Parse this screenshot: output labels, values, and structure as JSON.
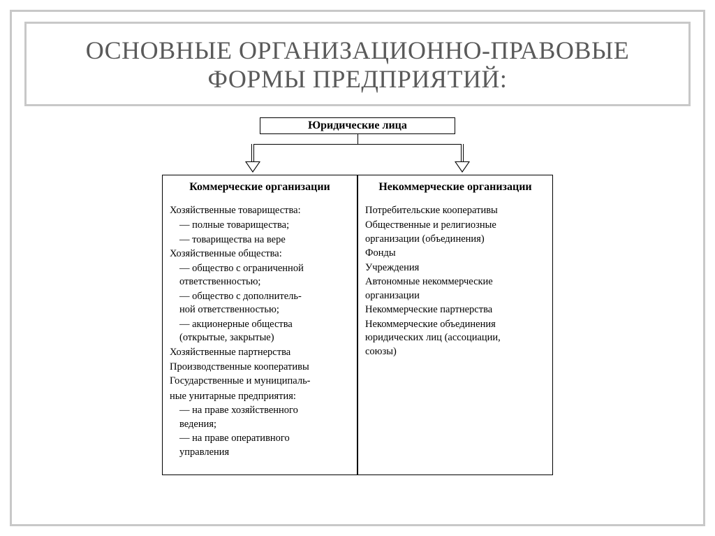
{
  "title": "ОСНОВНЫЕ ОРГАНИЗАЦИОННО-ПРАВОВЫЕ ФОРМЫ ПРЕДПРИЯТИЙ:",
  "root_label": "Юридические лица",
  "columns": {
    "commercial": {
      "heading": "Коммерческие организации",
      "g1_label": "Хозяйственные товарищества:",
      "g1_items": [
        "полные товарищества;",
        "товарищества на вере"
      ],
      "g2_label": "Хозяйственные общества:",
      "g2_items_a": "общество с ограниченной",
      "g2_items_a2": "ответственностью;",
      "g2_items_b": "общество с дополнитель-",
      "g2_items_b2": "ной ответственностью;",
      "g2_items_c": "акционерные общества",
      "g2_items_c2": "(открытые, закрытые)",
      "g3": "Хозяйственные партнерства",
      "g4": "Производственные кооперативы",
      "g5a": "Государственные и муниципаль-",
      "g5b": "ные унитарные предприятия:",
      "g5_items_a": "на праве хозяйственного",
      "g5_items_a2": "ведения;",
      "g5_items_b": "на праве оперативного",
      "g5_items_b2": "управления"
    },
    "noncommercial": {
      "heading": "Некоммерческие организации",
      "l1": "Потребительские кооперативы",
      "l2a": "Общественные и религиозные",
      "l2b": "организации (объединения)",
      "l3": "Фонды",
      "l4": "Учреждения",
      "l5a": "Автономные некоммерческие",
      "l5b": "организации",
      "l6": "Некоммерческие партнерства",
      "l7a": "Некоммерческие объединения",
      "l7b": "юридических лиц (ассоциации,",
      "l7c": "союзы)"
    }
  },
  "style": {
    "frame_border": "#c8c8c8",
    "title_color": "#5a5a5a",
    "box_border": "#000000",
    "bg": "#ffffff",
    "title_fontsize": 36,
    "body_fontsize": 14.5,
    "heading_fontsize": 16
  }
}
